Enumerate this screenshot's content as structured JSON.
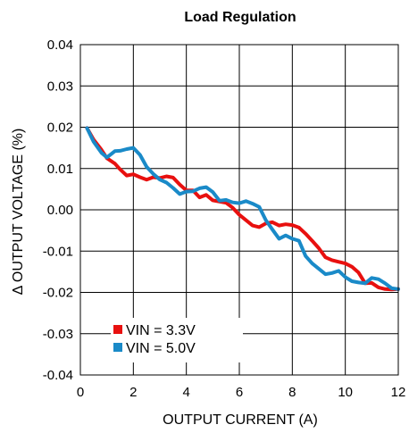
{
  "chart_data": {
    "type": "line",
    "title": "Load Regulation",
    "xlabel": "OUTPUT CURRENT (A)",
    "ylabel": "Δ OUTPUT VOLTAGE (%)",
    "xlim": [
      0,
      12
    ],
    "ylim": [
      -0.04,
      0.04
    ],
    "x_ticks": [
      "0",
      "2",
      "4",
      "6",
      "8",
      "10",
      "12"
    ],
    "y_ticks": [
      "-0.04",
      "-0.03",
      "-0.02",
      "-0.01",
      "0.00",
      "0.01",
      "0.02",
      "0.03",
      "0.04"
    ],
    "grid": true,
    "legend_position": "bottom-left",
    "series": [
      {
        "name": "VIN = 3.3V",
        "color": "#e8100f",
        "x": [
          0.25,
          0.5,
          0.8,
          1.0,
          1.3,
          1.5,
          1.75,
          2.0,
          2.25,
          2.5,
          2.75,
          3.0,
          3.25,
          3.5,
          3.75,
          4.0,
          4.25,
          4.5,
          4.75,
          5.0,
          5.25,
          5.5,
          5.75,
          6.0,
          6.25,
          6.5,
          6.75,
          7.0,
          7.25,
          7.5,
          7.75,
          8.0,
          8.25,
          8.5,
          8.75,
          9.0,
          9.25,
          9.5,
          9.75,
          10.0,
          10.25,
          10.5,
          10.75,
          11.0,
          11.25,
          11.5,
          11.75,
          12.0
        ],
        "y": [
          0.0198,
          0.017,
          0.0145,
          0.0125,
          0.0112,
          0.0098,
          0.0083,
          0.0086,
          0.0079,
          0.0073,
          0.0079,
          0.0077,
          0.0081,
          0.0078,
          0.0061,
          0.0047,
          0.0047,
          0.003,
          0.0036,
          0.0023,
          0.002,
          0.0017,
          0.0005,
          -0.0012,
          -0.0025,
          -0.0038,
          -0.0042,
          -0.0033,
          -0.003,
          -0.0038,
          -0.0035,
          -0.0037,
          -0.0043,
          -0.0058,
          -0.0075,
          -0.0093,
          -0.0115,
          -0.0122,
          -0.0126,
          -0.013,
          -0.0138,
          -0.0152,
          -0.0178,
          -0.0177,
          -0.0188,
          -0.0192,
          -0.0193,
          -0.0192
        ]
      },
      {
        "name": "VIN = 5.0V",
        "color": "#1a8ac8",
        "x": [
          0.25,
          0.5,
          0.8,
          1.0,
          1.3,
          1.5,
          1.75,
          2.0,
          2.25,
          2.5,
          2.75,
          3.0,
          3.25,
          3.5,
          3.75,
          4.0,
          4.25,
          4.5,
          4.75,
          5.0,
          5.25,
          5.5,
          5.75,
          6.0,
          6.25,
          6.5,
          6.75,
          7.0,
          7.25,
          7.5,
          7.75,
          8.0,
          8.25,
          8.5,
          8.75,
          9.0,
          9.25,
          9.5,
          9.75,
          10.0,
          10.25,
          10.5,
          10.75,
          11.0,
          11.25,
          11.5,
          11.75,
          12.0
        ],
        "y": [
          0.0198,
          0.0165,
          0.0138,
          0.0127,
          0.0142,
          0.0143,
          0.0147,
          0.015,
          0.0133,
          0.0104,
          0.0087,
          0.0073,
          0.0066,
          0.0053,
          0.0038,
          0.0044,
          0.0045,
          0.0052,
          0.0055,
          0.0043,
          0.0022,
          0.0024,
          0.0018,
          0.0016,
          0.0021,
          0.0015,
          0.0007,
          -0.0025,
          -0.0048,
          -0.007,
          -0.0062,
          -0.007,
          -0.0075,
          -0.0112,
          -0.013,
          -0.0143,
          -0.0156,
          -0.0153,
          -0.0148,
          -0.0163,
          -0.0173,
          -0.0176,
          -0.0178,
          -0.0165,
          -0.0168,
          -0.0178,
          -0.019,
          -0.0192
        ]
      }
    ]
  }
}
